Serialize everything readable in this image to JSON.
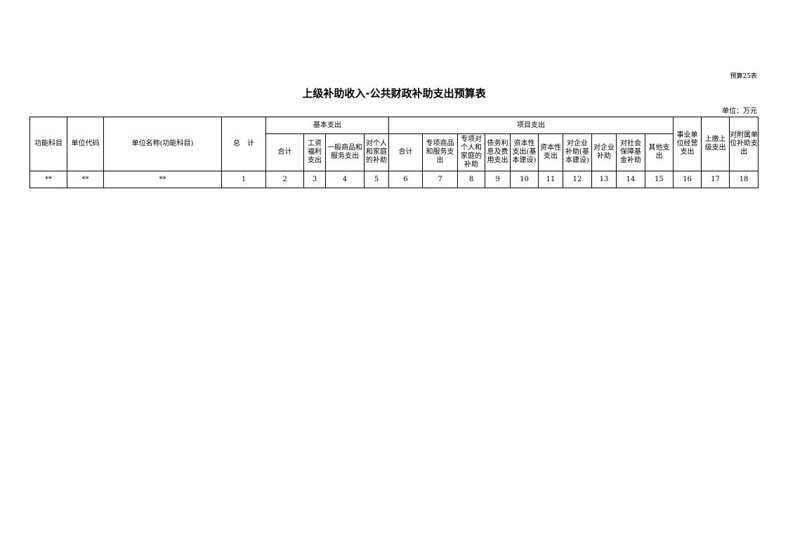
{
  "code": "预算25表",
  "title": "上级补助收入-公共财政补助支出预算表",
  "unit": "单位：万元",
  "headers": {
    "func": "功能科目",
    "code": "单位代码",
    "name": "单位名称(功能科目)",
    "total": "总　计",
    "basic": "基本支出",
    "project": "项目支出",
    "biz": "事业单\n位经营\n支出",
    "upper": "上缴上\n级支出",
    "subsid": "对附属单\n位补助支\n出",
    "basic_sub": [
      "合计",
      "工资\n福利\n支出",
      "一般商品和\n服务支出",
      "对个人\n和家庭\n的补助"
    ],
    "project_sub": [
      "合计",
      "专项商品\n和服务支\n出",
      "专项对\n个人和\n家庭的\n补助",
      "债务利\n息及费\n用支出",
      "资本性\n支出(基\n本建设)",
      "资本性\n支出",
      "对企业\n补助(基\n本建设)",
      "对企业\n补助",
      "对社会\n保障基\n金补助",
      "其他支\n出"
    ]
  },
  "row": [
    "**",
    "**",
    "**",
    "1",
    "2",
    "3",
    "4",
    "5",
    "6",
    "7",
    "8",
    "9",
    "10",
    "11",
    "12",
    "13",
    "14",
    "15",
    "16",
    "17",
    "18"
  ]
}
